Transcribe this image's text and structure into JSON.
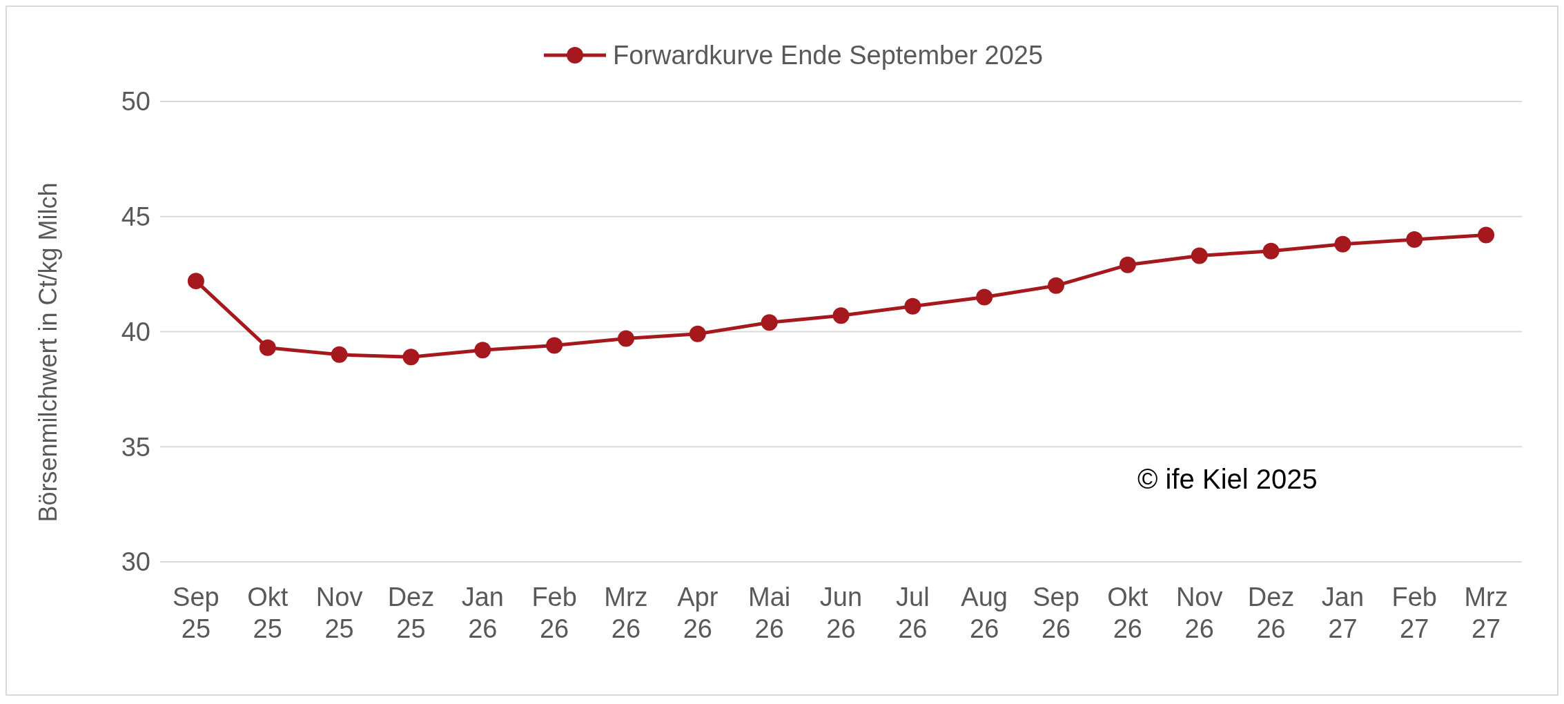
{
  "chart_data": {
    "type": "line",
    "ylabel": "Börsenmilchwert in Ct/kg Milch",
    "categories": [
      "Sep 25",
      "Okt 25",
      "Nov 25",
      "Dez 25",
      "Jan 26",
      "Feb 26",
      "Mrz 26",
      "Apr 26",
      "Mai 26",
      "Jun 26",
      "Jul 26",
      "Aug 26",
      "Sep 26",
      "Okt 26",
      "Nov 26",
      "Dez 26",
      "Jan 27",
      "Feb 27",
      "Mrz 27"
    ],
    "series": [
      {
        "name": "Forwardkurve Ende September 2025",
        "color": "#a5191e",
        "values": [
          42.2,
          39.3,
          39.0,
          38.9,
          39.2,
          39.4,
          39.7,
          39.9,
          40.4,
          40.7,
          41.1,
          41.5,
          42.0,
          42.9,
          43.3,
          43.5,
          43.8,
          44.0,
          44.2
        ]
      }
    ],
    "ylim": [
      30,
      50
    ],
    "yticks": [
      30,
      35,
      40,
      45,
      50
    ],
    "grid": "y",
    "legend": "top",
    "marker": "circle",
    "line_style": "solid",
    "annotations": [
      "© ife Kiel 2025"
    ]
  }
}
